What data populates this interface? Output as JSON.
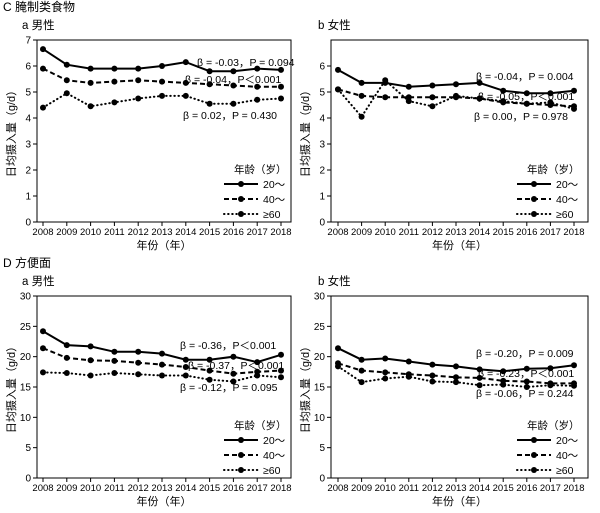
{
  "sections": [
    "C 腌制类食物",
    "D 方便面"
  ],
  "chart_data": [
    {
      "type": "line",
      "title": "a 男性",
      "xlabel": "年份（年）",
      "ylabel": "日均摄入量（g/d）",
      "x": [
        2008,
        2009,
        2010,
        2011,
        2012,
        2013,
        2014,
        2015,
        2016,
        2017,
        2018
      ],
      "ylim": [
        0,
        7
      ],
      "yticks": [
        0,
        1,
        2,
        3,
        4,
        5,
        6,
        7
      ],
      "grid": false,
      "legend_title": "年龄（岁）",
      "legend_position": "bottom-right",
      "series": [
        {
          "name": "20～",
          "line_style": "solid",
          "marker": "filled-circle",
          "values": [
            6.65,
            6.05,
            5.9,
            5.9,
            5.9,
            6.0,
            6.15,
            5.8,
            5.8,
            5.9,
            5.85
          ],
          "annotation": "β = -0.03，P = 0.094"
        },
        {
          "name": "40～",
          "line_style": "dashed",
          "marker": "filled-circle",
          "values": [
            5.9,
            5.45,
            5.35,
            5.4,
            5.45,
            5.4,
            5.35,
            5.3,
            5.25,
            5.2,
            5.2
          ],
          "annotation": "β = -0.04，P＜0.001"
        },
        {
          "name": "≥60",
          "line_style": "dotted",
          "marker": "filled-circle",
          "values": [
            4.4,
            4.95,
            4.45,
            4.6,
            4.75,
            4.85,
            4.85,
            4.55,
            4.55,
            4.7,
            4.75
          ],
          "annotation": "β = 0.02，P = 0.430"
        }
      ]
    },
    {
      "type": "line",
      "title": "b 女性",
      "xlabel": "年份（年）",
      "ylabel": "日均摄入量（g/d）",
      "x": [
        2008,
        2009,
        2010,
        2011,
        2012,
        2013,
        2014,
        2015,
        2016,
        2017,
        2018
      ],
      "ylim": [
        0,
        7
      ],
      "yticks": [
        0,
        1,
        2,
        3,
        4,
        5,
        6
      ],
      "grid": false,
      "legend_title": "年龄（岁）",
      "legend_position": "bottom-right",
      "series": [
        {
          "name": "20～",
          "line_style": "solid",
          "marker": "filled-circle",
          "values": [
            5.85,
            5.35,
            5.35,
            5.2,
            5.25,
            5.3,
            5.35,
            5.05,
            4.95,
            4.95,
            5.05
          ],
          "annotation": "β = -0.04，P = 0.004"
        },
        {
          "name": "40～",
          "line_style": "dashed",
          "marker": "filled-circle",
          "values": [
            5.1,
            4.85,
            4.8,
            4.8,
            4.8,
            4.8,
            4.75,
            4.6,
            4.55,
            4.5,
            4.45
          ],
          "annotation": "β = -0.05，P＜0.001"
        },
        {
          "name": "≥60",
          "line_style": "dotted",
          "marker": "filled-circle",
          "values": [
            5.1,
            4.05,
            5.45,
            4.65,
            4.45,
            4.85,
            4.75,
            4.65,
            4.55,
            4.6,
            4.35
          ],
          "annotation": "β = 0.00，P = 0.978"
        }
      ]
    },
    {
      "type": "line",
      "title": "a 男性",
      "xlabel": "年份（年）",
      "ylabel": "日均摄入量（g/d）",
      "x": [
        2008,
        2009,
        2010,
        2011,
        2012,
        2013,
        2014,
        2015,
        2016,
        2017,
        2018
      ],
      "ylim": [
        0,
        30
      ],
      "yticks": [
        0,
        5,
        10,
        15,
        20,
        25,
        30
      ],
      "grid": false,
      "legend_title": "年龄（岁）",
      "legend_position": "bottom-right",
      "series": [
        {
          "name": "20～",
          "line_style": "solid",
          "marker": "filled-circle",
          "values": [
            24.2,
            21.9,
            21.7,
            20.8,
            20.8,
            20.5,
            19.5,
            19.5,
            20.0,
            19.1,
            20.3
          ],
          "annotation": "β = -0.36，P＜0.001"
        },
        {
          "name": "40～",
          "line_style": "dashed",
          "marker": "filled-circle",
          "values": [
            21.4,
            19.8,
            19.4,
            19.3,
            19.0,
            18.7,
            18.3,
            17.7,
            17.2,
            17.5,
            17.7
          ],
          "annotation": "β = -0.37，P＜0.001"
        },
        {
          "name": "≥60",
          "line_style": "dotted",
          "marker": "filled-circle",
          "values": [
            17.4,
            17.3,
            16.9,
            17.3,
            17.1,
            16.9,
            16.9,
            16.2,
            15.9,
            16.9,
            16.6
          ],
          "annotation": "β = -0.12，P = 0.095"
        }
      ]
    },
    {
      "type": "line",
      "title": "b 女性",
      "xlabel": "年份（年）",
      "ylabel": "日均摄入量（g/d）",
      "x": [
        2008,
        2009,
        2010,
        2011,
        2012,
        2013,
        2014,
        2015,
        2016,
        2017,
        2018
      ],
      "ylim": [
        0,
        30
      ],
      "yticks": [
        0,
        5,
        10,
        15,
        20,
        25,
        30
      ],
      "grid": false,
      "legend_title": "年龄（岁）",
      "legend_position": "bottom-right",
      "series": [
        {
          "name": "20～",
          "line_style": "solid",
          "marker": "filled-circle",
          "values": [
            21.4,
            19.5,
            19.7,
            19.2,
            18.7,
            18.4,
            17.9,
            17.6,
            18.0,
            18.1,
            18.6
          ],
          "annotation": "β = -0.20，P = 0.009"
        },
        {
          "name": "40～",
          "line_style": "dashed",
          "marker": "filled-circle",
          "values": [
            18.9,
            17.7,
            17.4,
            17.1,
            16.9,
            16.6,
            16.5,
            16.0,
            15.9,
            15.6,
            15.6
          ],
          "annotation": "β = -0.23，P＜0.001"
        },
        {
          "name": "≥60",
          "line_style": "dotted",
          "marker": "filled-circle",
          "values": [
            18.4,
            15.8,
            16.4,
            16.7,
            15.9,
            15.8,
            15.3,
            15.4,
            15.0,
            15.3,
            15.2
          ],
          "annotation": "β = -0.06，P = 0.244"
        }
      ]
    }
  ]
}
